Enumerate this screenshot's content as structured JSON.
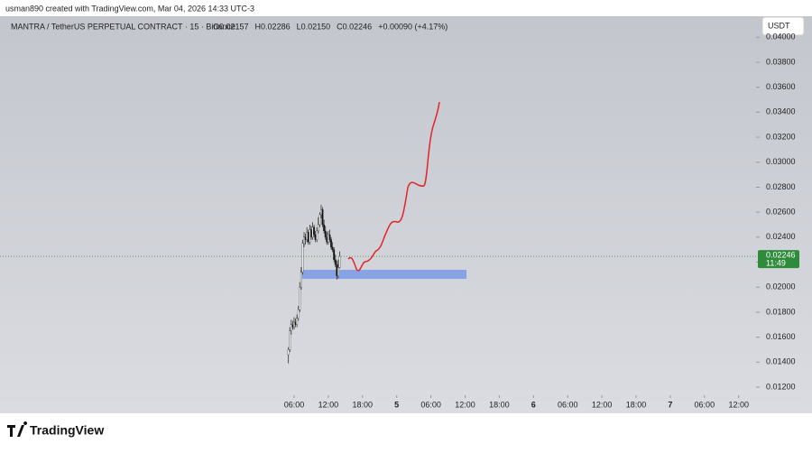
{
  "header": {
    "credit": "usman890 created with TradingView.com, Mar 04, 2026 14:33 UTC-3",
    "logo": "TradingView"
  },
  "chart_data": {
    "type": "candlestick",
    "title": "MANTRA / TetherUS PERPETUAL CONTRACT · 15 · Binance",
    "ohlc_legend": [
      "O0.02157",
      "H0.02286",
      "L0.02150",
      "C0.02246",
      "+0.00090 (+4.17%)"
    ],
    "currency": "USDT",
    "countdown": "11:49",
    "x": [
      5,
      5.25,
      5.5,
      5.75,
      6,
      6.25,
      6.5,
      6.75,
      7,
      7.25,
      7.5,
      7.75,
      8,
      8.25,
      8.5,
      8.75,
      9,
      9.25,
      9.5,
      9.75,
      10,
      10.25,
      10.5,
      10.75,
      11,
      11.25,
      11.5,
      11.75,
      12,
      12.25,
      12.5,
      12.75,
      13,
      13.25,
      13.5,
      13.75,
      14
    ],
    "open": [
      0.0146,
      0.015,
      0.0165,
      0.017,
      0.0168,
      0.0172,
      0.017,
      0.0175,
      0.0182,
      0.02,
      0.0212,
      0.0235,
      0.024,
      0.0238,
      0.0244,
      0.0236,
      0.0246,
      0.024,
      0.0248,
      0.0242,
      0.0238,
      0.0245,
      0.025,
      0.0258,
      0.0262,
      0.025,
      0.0245,
      0.024,
      0.0236,
      0.0242,
      0.0238,
      0.0232,
      0.023,
      0.0222,
      0.0218,
      0.0209,
      0.02157
    ],
    "high": [
      0.0152,
      0.0168,
      0.0174,
      0.0173,
      0.0176,
      0.0175,
      0.0178,
      0.0185,
      0.0204,
      0.0216,
      0.0238,
      0.0244,
      0.0243,
      0.0248,
      0.0246,
      0.025,
      0.0249,
      0.0252,
      0.025,
      0.0245,
      0.0248,
      0.0256,
      0.026,
      0.0266,
      0.0264,
      0.0254,
      0.0249,
      0.0244,
      0.0245,
      0.0246,
      0.024,
      0.0236,
      0.0232,
      0.0226,
      0.0221,
      0.0222,
      0.02286
    ],
    "low": [
      0.0139,
      0.0148,
      0.0162,
      0.0166,
      0.0166,
      0.0168,
      0.0168,
      0.0173,
      0.018,
      0.0198,
      0.021,
      0.0232,
      0.0234,
      0.0236,
      0.0234,
      0.0234,
      0.0238,
      0.0238,
      0.024,
      0.0236,
      0.0236,
      0.0243,
      0.0248,
      0.0255,
      0.0248,
      0.0243,
      0.0238,
      0.0234,
      0.0234,
      0.0236,
      0.023,
      0.0228,
      0.022,
      0.0216,
      0.0206,
      0.0207,
      0.0215
    ],
    "close": [
      0.015,
      0.0165,
      0.017,
      0.0168,
      0.0172,
      0.017,
      0.0175,
      0.0182,
      0.02,
      0.0212,
      0.0235,
      0.024,
      0.0238,
      0.0244,
      0.0236,
      0.0246,
      0.024,
      0.0248,
      0.0242,
      0.0238,
      0.0245,
      0.025,
      0.0258,
      0.0262,
      0.025,
      0.0245,
      0.024,
      0.0236,
      0.0242,
      0.0238,
      0.0232,
      0.023,
      0.0222,
      0.0218,
      0.0209,
      0.02157,
      0.02246
    ],
    "up_color": "#f2f2f2",
    "down_color": "#111111",
    "last_price": 0.02246,
    "last_price_color": "#2e8b3a",
    "xlim": [
      -45.6,
      87.05
    ],
    "xticks": [
      {
        "value": 6,
        "label": "06:00"
      },
      {
        "value": 12,
        "label": "12:00"
      },
      {
        "value": 18,
        "label": "18:00"
      },
      {
        "value": 24,
        "label": "5"
      },
      {
        "value": 30,
        "label": "06:00"
      },
      {
        "value": 36,
        "label": "12:00"
      },
      {
        "value": 42,
        "label": "18:00"
      },
      {
        "value": 48,
        "label": "6"
      },
      {
        "value": 54,
        "label": "06:00"
      },
      {
        "value": 60,
        "label": "12:00"
      },
      {
        "value": 66,
        "label": "18:00"
      },
      {
        "value": 72,
        "label": "7"
      },
      {
        "value": 78,
        "label": "06:00"
      },
      {
        "value": 84,
        "label": "12:00"
      }
    ],
    "ylim": [
      0.01135,
      0.04168
    ],
    "yticks": [
      {
        "value": 0.012,
        "label": "0.01200"
      },
      {
        "value": 0.014,
        "label": "0.01400"
      },
      {
        "value": 0.016,
        "label": "0.01600"
      },
      {
        "value": 0.018,
        "label": "0.01800"
      },
      {
        "value": 0.02,
        "label": "0.02000"
      },
      {
        "value": 0.022,
        "label": "0.02200"
      },
      {
        "value": 0.024,
        "label": "0.02400"
      },
      {
        "value": 0.026,
        "label": "0.02600"
      },
      {
        "value": 0.028,
        "label": "0.02800"
      },
      {
        "value": 0.03,
        "label": "0.03000"
      },
      {
        "value": 0.032,
        "label": "0.03200"
      },
      {
        "value": 0.034,
        "label": "0.03400"
      },
      {
        "value": 0.036,
        "label": "0.03600"
      },
      {
        "value": 0.038,
        "label": "0.03800"
      },
      {
        "value": 0.04,
        "label": "0.04000"
      }
    ]
  }
}
